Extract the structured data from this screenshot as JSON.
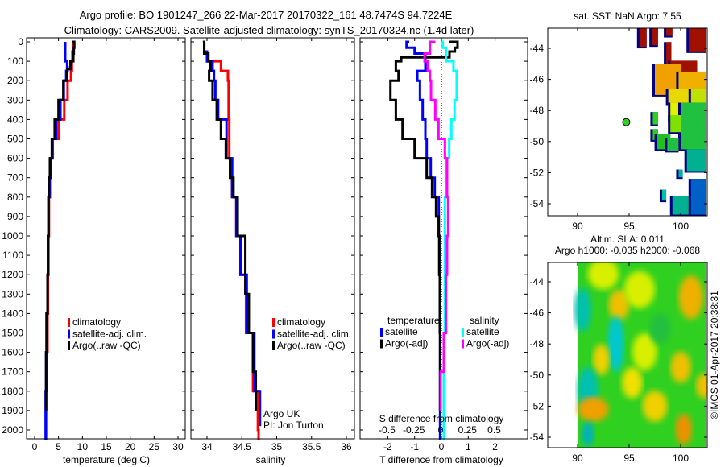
{
  "header": {
    "title_line1": "Argo profile: BO 1901247_266 22-Mar-2017 20170322_161 48.7474S 94.7224E",
    "title_line2": "Climatology: CARS2009. Satellite-adjusted climatology: synTS_20170324.nc (1.4d later)"
  },
  "colors": {
    "climatology": "#ff0000",
    "satellite": "#0000ff",
    "argo": "#000000",
    "s_satellite": "#00ffff",
    "s_argo": "#ff00ff"
  },
  "chart_data": [
    {
      "type": "line",
      "id": "temperature",
      "xlabel": "temperature (deg C)",
      "ylabel": "depth",
      "xlim": [
        -1.7,
        31.5
      ],
      "ylim": [
        2045,
        -20
      ],
      "xticks": [
        "0",
        "5",
        "10",
        "15",
        "20",
        "25",
        "30"
      ],
      "xtick_values": [
        0,
        5,
        10,
        15,
        20,
        25,
        30
      ],
      "yticks": [
        "0",
        "100",
        "200",
        "300",
        "400",
        "500",
        "600",
        "700",
        "800",
        "900",
        "1000",
        "1100",
        "1200",
        "1300",
        "1400",
        "1500",
        "1600",
        "1700",
        "1800",
        "1900",
        "2000"
      ],
      "legend": [
        "climatology",
        "satellite-adj. clim.",
        "Argo(..raw -QC)"
      ],
      "series": [
        {
          "name": "climatology",
          "color": "#ff0000",
          "depth": [
            0,
            50,
            100,
            150,
            200,
            300,
            400,
            500,
            600,
            700,
            800,
            1000,
            1200,
            1400,
            1600,
            1800,
            2000,
            2050
          ],
          "values": [
            8.0,
            8.0,
            7.9,
            7.8,
            7.6,
            6.9,
            6.2,
            5.0,
            3.8,
            3.4,
            3.2,
            3.0,
            2.9,
            2.8,
            2.7,
            2.5,
            2.4,
            2.4
          ]
        },
        {
          "name": "satellite-adj. clim.",
          "color": "#0000ff",
          "depth": [
            0,
            50,
            100,
            130,
            150,
            200,
            300,
            400,
            500,
            600,
            700,
            800,
            1000,
            1200,
            1400,
            1600,
            1800,
            2000,
            2050
          ],
          "values": [
            6.4,
            6.4,
            6.4,
            6.8,
            6.9,
            6.6,
            6.1,
            5.4,
            4.5,
            3.7,
            3.3,
            3.1,
            2.9,
            2.8,
            2.7,
            2.5,
            2.4,
            2.3,
            2.3
          ]
        },
        {
          "name": "Argo(..raw -QC)",
          "color": "#000000",
          "depth": [
            0,
            30,
            60,
            100,
            140,
            200,
            300,
            400,
            500,
            600,
            700,
            800,
            1000,
            1200,
            1400,
            1600,
            1800,
            1900
          ],
          "values": [
            7.9,
            8.3,
            8.2,
            8.1,
            7.5,
            6.8,
            6.0,
            5.0,
            4.2,
            3.6,
            3.2,
            3.0,
            2.9,
            2.8,
            2.7,
            2.5,
            2.4,
            2.4
          ]
        }
      ]
    },
    {
      "type": "line",
      "id": "salinity",
      "xlabel": "salinity",
      "xlim": [
        33.77,
        36.11
      ],
      "ylim": [
        2045,
        -20
      ],
      "xticks": [
        "34",
        "34.5",
        "35",
        "35.5",
        "36"
      ],
      "xtick_values": [
        34,
        34.5,
        35,
        35.5,
        36
      ],
      "legend": [
        "climatology",
        "satellite-adj. clim.",
        "Argo(..raw -QC)"
      ],
      "annotation": [
        "Argo UK",
        "PI: Jon Turton"
      ],
      "series": [
        {
          "name": "climatology",
          "color": "#ff0000",
          "depth": [
            0,
            50,
            100,
            150,
            200,
            300,
            400,
            600,
            800,
            1000,
            1200,
            1500,
            1800,
            2000,
            2050
          ],
          "values": [
            33.95,
            33.96,
            34.0,
            34.2,
            34.3,
            34.31,
            34.31,
            34.32,
            34.36,
            34.42,
            34.48,
            34.56,
            34.66,
            34.73,
            34.74
          ]
        },
        {
          "name": "satellite-adj. clim.",
          "color": "#0000ff",
          "depth": [
            0,
            50,
            100,
            150,
            200,
            300,
            400,
            600,
            800,
            1000,
            1200,
            1500,
            1800,
            1980
          ],
          "values": [
            33.94,
            33.96,
            34.0,
            34.08,
            34.1,
            34.12,
            34.16,
            34.28,
            34.36,
            34.42,
            34.48,
            34.57,
            34.68,
            34.76
          ]
        },
        {
          "name": "Argo(..raw -QC)",
          "color": "#000000",
          "depth": [
            0,
            60,
            100,
            150,
            200,
            300,
            400,
            500,
            600,
            700,
            800,
            1000,
            1300,
            1500,
            1700,
            1900
          ],
          "values": [
            33.95,
            33.96,
            34.02,
            34.05,
            34.03,
            34.08,
            34.14,
            34.2,
            34.27,
            34.33,
            34.38,
            34.44,
            34.55,
            34.6,
            34.66,
            34.7
          ]
        }
      ]
    },
    {
      "type": "line",
      "id": "difference",
      "xlabel": "T difference from climatology",
      "x2label": "S difference from climatology",
      "xlim": [
        -3,
        3.2
      ],
      "x2lim": [
        -0.75,
        0.8
      ],
      "xticks": [
        "-2",
        "-1",
        "0",
        "1",
        "2"
      ],
      "xtick_values": [
        -2,
        -1,
        0,
        1,
        2
      ],
      "x2ticks": [
        "-0.5",
        "-0.25",
        "0",
        "0.25",
        "0.5"
      ],
      "x2tick_values": [
        -0.5,
        -0.25,
        0,
        0.25,
        0.5
      ],
      "legend_groups": [
        {
          "title": "temperature",
          "items": [
            "satellite",
            "Argo(-adj)"
          ]
        },
        {
          "title": "salinity",
          "items": [
            "satellite",
            "Argo(-adj)"
          ]
        }
      ],
      "series": [
        {
          "name": "T satellite",
          "axis": "T",
          "color": "#0000ff",
          "depth": [
            0,
            30,
            60,
            100,
            150,
            200,
            300,
            400,
            500,
            600,
            700,
            800,
            1000,
            1200,
            1500,
            2000,
            2050
          ],
          "values": [
            -1.2,
            -1.3,
            -1.0,
            -0.6,
            -0.6,
            -0.9,
            -0.8,
            -0.7,
            -0.6,
            -0.55,
            -0.4,
            -0.25,
            -0.1,
            -0.08,
            -0.06,
            -0.05,
            -0.05
          ]
        },
        {
          "name": "T Argo(-adj)",
          "axis": "T",
          "color": "#000000",
          "depth": [
            0,
            30,
            50,
            80,
            100,
            150,
            200,
            250,
            300,
            400,
            500,
            600,
            700,
            800,
            900,
            1000,
            1200,
            1500,
            1900
          ],
          "values": [
            0.3,
            0.6,
            0.5,
            0.3,
            -1.5,
            -1.7,
            -1.6,
            -1.9,
            -1.9,
            -1.7,
            -1.45,
            -1.0,
            -0.55,
            -0.35,
            -0.2,
            -0.1,
            -0.08,
            -0.06,
            -0.05
          ]
        },
        {
          "name": "S satellite",
          "axis": "S",
          "color": "#00ffff",
          "depth": [
            0,
            30,
            60,
            100,
            150,
            200,
            300,
            400,
            500,
            600,
            800,
            1000,
            1500,
            2000,
            2050
          ],
          "values": [
            0.0,
            0.02,
            0.05,
            0.05,
            0.12,
            0.15,
            0.15,
            0.13,
            0.1,
            0.08,
            0.05,
            0.04,
            0.04,
            0.03,
            0.03
          ]
        },
        {
          "name": "S Argo(-adj)",
          "axis": "S",
          "color": "#ff00ff",
          "depth": [
            0,
            60,
            100,
            150,
            200,
            300,
            400,
            500,
            600,
            700,
            800,
            1000,
            1200,
            1500,
            1700,
            1900
          ],
          "values": [
            -0.05,
            -0.1,
            -0.15,
            -0.12,
            -0.1,
            -0.09,
            -0.05,
            -0.02,
            0.04,
            0.06,
            0.06,
            0.07,
            0.06,
            0.05,
            0.03,
            0.0
          ]
        }
      ]
    },
    {
      "type": "heatmap",
      "id": "sst_map",
      "title": "sat. SST: NaN Argo: 7.55",
      "xlim": [
        87.1,
        102.5
      ],
      "ylim": [
        -54.7,
        -42.7
      ],
      "xticks": [
        "90",
        "95",
        "100"
      ],
      "xtick_values": [
        90,
        95,
        100
      ],
      "yticks": [
        "-44",
        "-46",
        "-48",
        "-50",
        "-52",
        "-54"
      ],
      "ytick_values": [
        -44,
        -46,
        -48,
        -50,
        -52,
        -54
      ],
      "argo_position": {
        "lon": 94.7224,
        "lat": -48.7474,
        "color": "#30d020"
      },
      "cells": [
        [
          96.0,
          -42.5,
          96.7,
          -43.9,
          "#a01000"
        ],
        [
          97.2,
          -42.5,
          97.8,
          -43.8,
          "#a01000"
        ],
        [
          98.6,
          -42.5,
          99.2,
          -43.2,
          "#a01000"
        ],
        [
          100.8,
          -42.5,
          102.5,
          -44.2,
          "#a01000"
        ],
        [
          98.6,
          -43.6,
          99.1,
          -45.0,
          "#a01000"
        ],
        [
          99.0,
          -44.8,
          101.6,
          -45.7,
          "#a01000"
        ],
        [
          97.5,
          -45.0,
          100.0,
          -47.0,
          "#f0a000"
        ],
        [
          99.8,
          -45.5,
          102.5,
          -46.6,
          "#f0b000"
        ],
        [
          98.8,
          -46.6,
          100.8,
          -47.6,
          "#e8d800"
        ],
        [
          101.0,
          -46.6,
          102.5,
          -47.6,
          "#c0e000"
        ],
        [
          99.0,
          -47.5,
          100.6,
          -48.6,
          "#e0f000"
        ],
        [
          100.0,
          -47.5,
          102.5,
          -50.5,
          "#20c040"
        ],
        [
          97.3,
          -48.1,
          97.8,
          -48.9,
          "#30d020"
        ],
        [
          97.3,
          -49.2,
          97.8,
          -49.9,
          "#30d020"
        ],
        [
          97.7,
          -49.5,
          99.0,
          -50.5,
          "#20c020"
        ],
        [
          99.0,
          -48.3,
          100.0,
          -49.4,
          "#80e000"
        ],
        [
          98.7,
          -49.8,
          99.8,
          -50.6,
          "#20c040"
        ],
        [
          100.6,
          -50.5,
          102.5,
          -51.9,
          "#00b090"
        ],
        [
          99.8,
          -51.8,
          100.2,
          -52.3,
          "#00b0a0"
        ],
        [
          98.2,
          -53.1,
          98.6,
          -53.8,
          "#00c0a0"
        ],
        [
          99.2,
          -53.5,
          101.0,
          -54.7,
          "#00b090"
        ],
        [
          101.0,
          -52.4,
          102.5,
          -54.7,
          "#0060c8"
        ]
      ]
    },
    {
      "type": "heatmap",
      "id": "sla_map",
      "title_line1": "Altim. SLA: 0.011",
      "title_line2": "Argo h1000: -0.035 h2000: -0.068",
      "xlim": [
        87.1,
        102.5
      ],
      "ylim": [
        -54.7,
        -42.7
      ],
      "xticks": [
        "90",
        "95",
        "100"
      ],
      "xtick_values": [
        90,
        95,
        100
      ],
      "yticks": [
        "-44",
        "-46",
        "-48",
        "-50",
        "-52",
        "-54"
      ],
      "ytick_values": [
        -44,
        -46,
        -48,
        -50,
        -52,
        -54
      ],
      "field_extent": [
        90,
        102.5,
        -54.7,
        -42.7
      ],
      "blobs": [
        [
          92.5,
          -43.5,
          1.5,
          1.0,
          "#d8f000"
        ],
        [
          94.0,
          -45.5,
          1.0,
          1.0,
          "#f0c000"
        ],
        [
          96.0,
          -44.5,
          1.5,
          1.2,
          "#d8f000"
        ],
        [
          101.0,
          -45.0,
          1.2,
          1.4,
          "#f0b000"
        ],
        [
          90.5,
          -45.8,
          0.8,
          1.4,
          "#00c0b0"
        ],
        [
          93.7,
          -48.0,
          0.8,
          1.8,
          "#00c8d0"
        ],
        [
          92.3,
          -49.0,
          0.8,
          1.0,
          "#f0d000"
        ],
        [
          96.5,
          -48.5,
          1.2,
          1.2,
          "#d8f000"
        ],
        [
          100.0,
          -49.5,
          1.0,
          1.0,
          "#f0c000"
        ],
        [
          95.3,
          -50.5,
          1.0,
          1.0,
          "#f0e000"
        ],
        [
          91.0,
          -51.0,
          1.0,
          1.5,
          "#00c0b0"
        ],
        [
          91.5,
          -52.2,
          1.5,
          0.8,
          "#f0a000"
        ],
        [
          97.5,
          -52.0,
          1.2,
          1.0,
          "#f0d000"
        ],
        [
          100.3,
          -53.5,
          0.8,
          1.0,
          "#f09000"
        ],
        [
          91.0,
          -53.8,
          0.6,
          0.8,
          "#00b0c0"
        ],
        [
          102.3,
          -50.7,
          0.8,
          0.8,
          "#f0c000"
        ],
        [
          98.0,
          -47.0,
          1.0,
          1.0,
          "#20c040"
        ]
      ]
    }
  ],
  "footer": {
    "copyright": "©IMOS 01-Apr-2017 20:38:31"
  }
}
